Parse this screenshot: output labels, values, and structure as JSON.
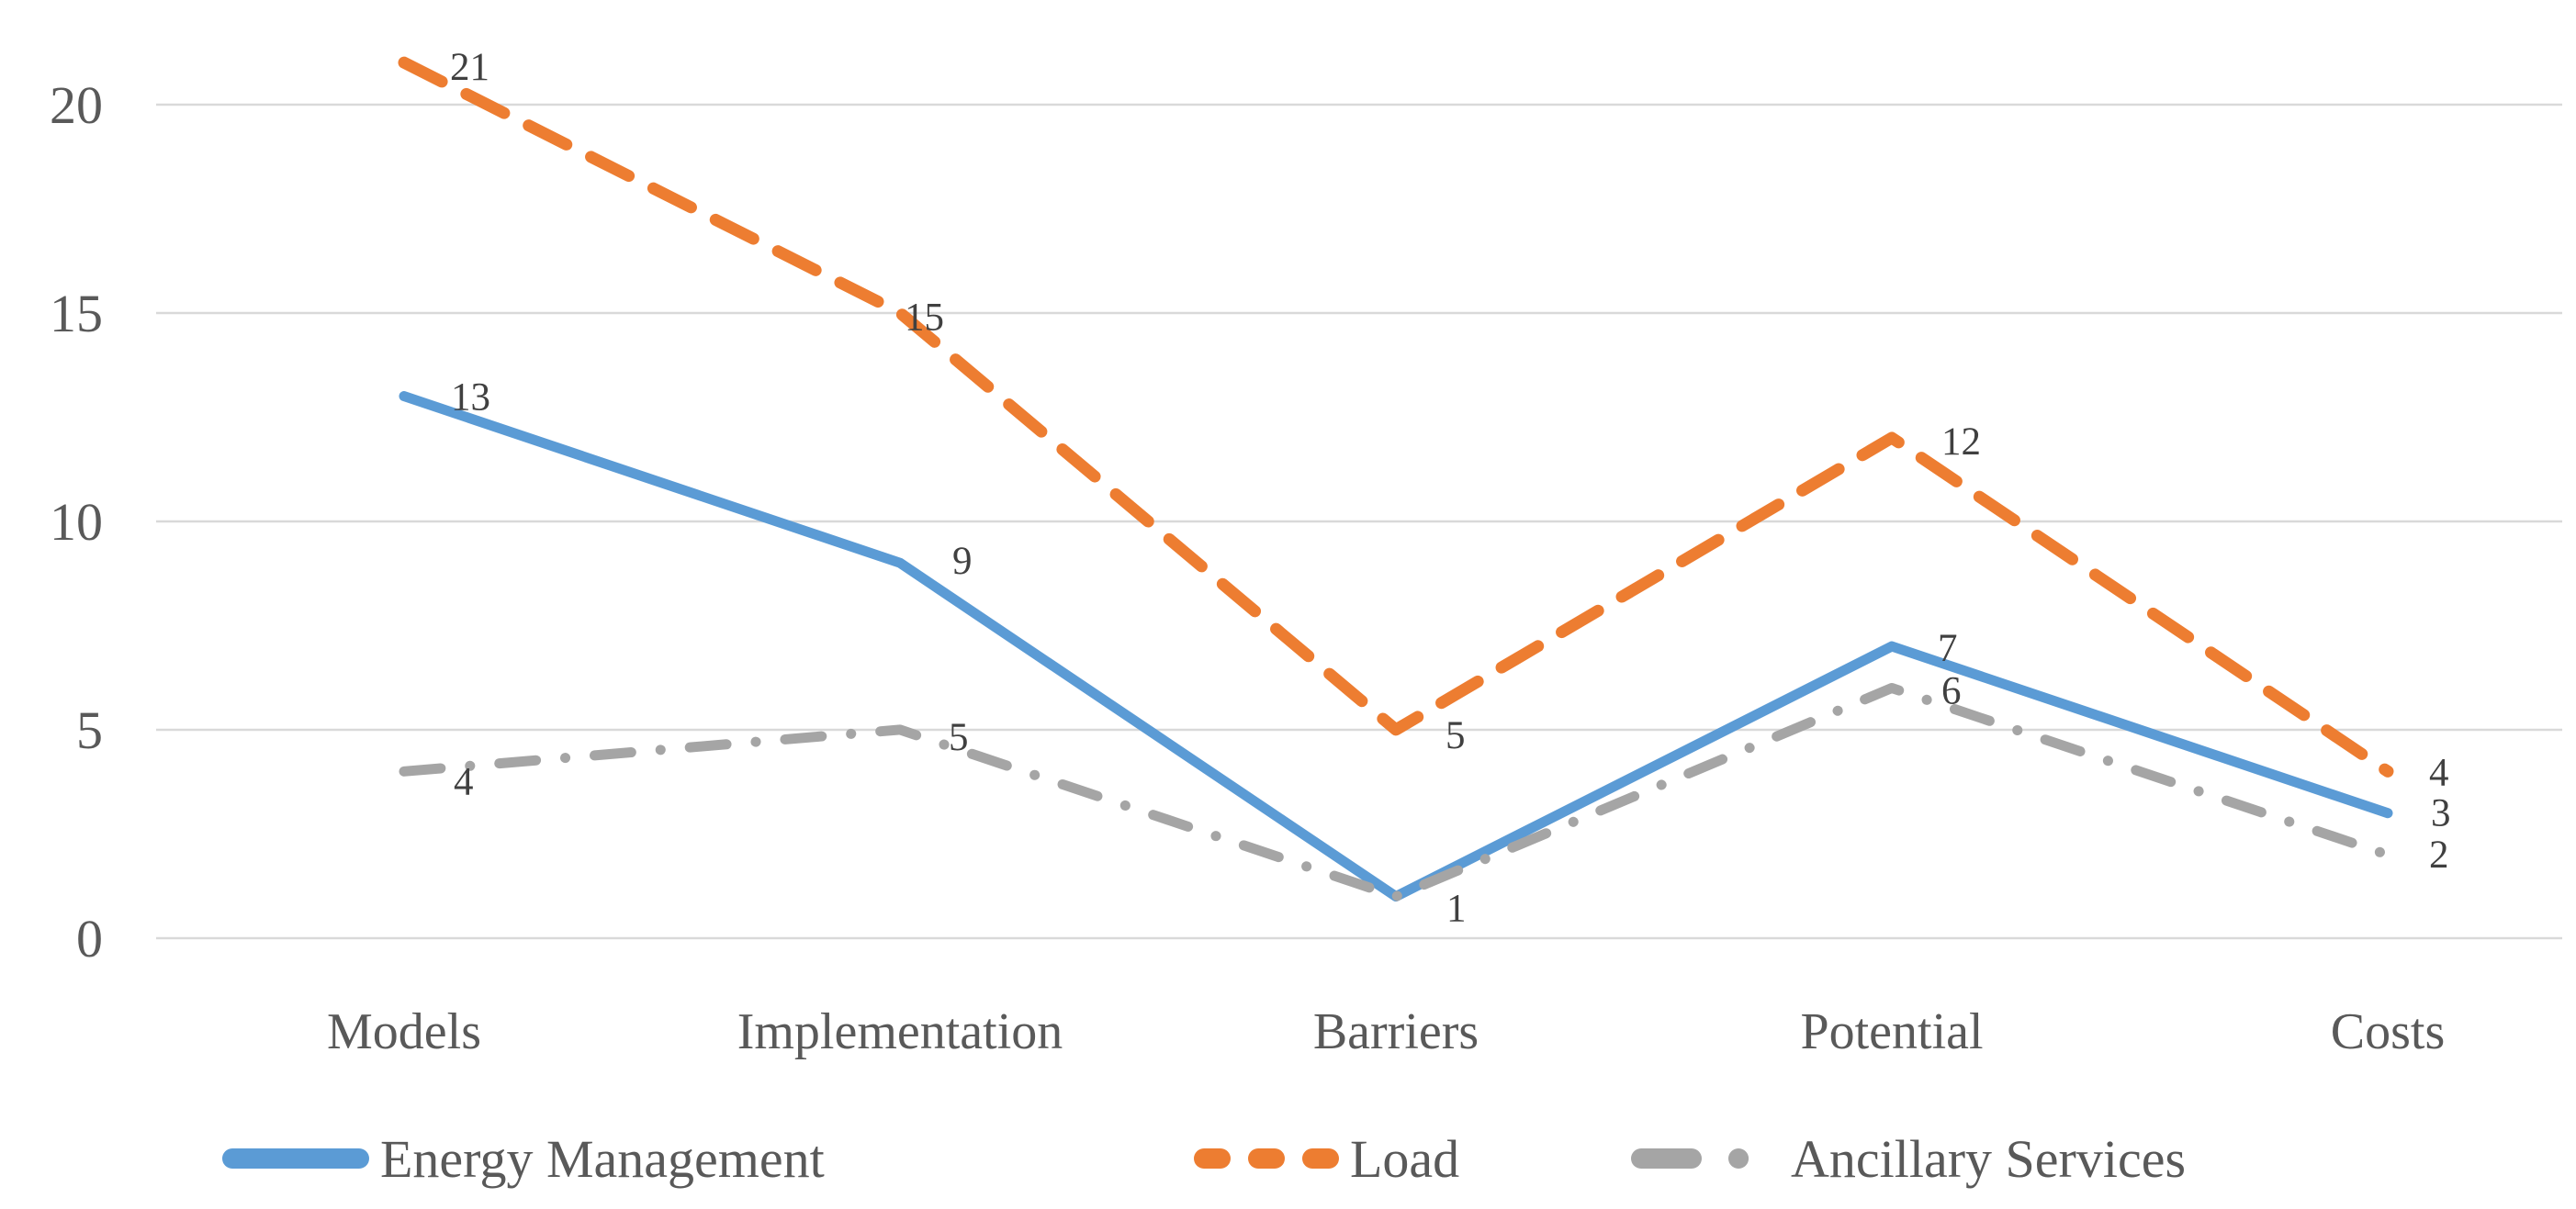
{
  "figure": {
    "background": "#FFFFFF",
    "title": ""
  },
  "chart_data": {
    "type": "line",
    "title": "",
    "xlabel": "",
    "ylabel": "",
    "categories": [
      "Models",
      "Implementation",
      "Barriers",
      "Potential",
      "Costs"
    ],
    "series": [
      {
        "name": "Energy Management",
        "color": "#5B9BD5",
        "style": "solid",
        "values": [
          13,
          9,
          1,
          7,
          3
        ],
        "labels": [
          "13",
          "9",
          "1",
          "7",
          "3"
        ]
      },
      {
        "name": "Load",
        "color": "#ED7D31",
        "style": "dashed",
        "values": [
          21,
          15,
          5,
          12,
          4
        ],
        "labels": [
          "21",
          "15",
          "5",
          "12",
          "4"
        ]
      },
      {
        "name": "Ancillary Services",
        "color": "#A5A5A5",
        "style": "dash-dot",
        "values": [
          4,
          5,
          1,
          6,
          2
        ],
        "labels": [
          "4",
          "5",
          "",
          "6",
          "2"
        ]
      }
    ],
    "yticks_top_to_bottom": [
      20,
      15,
      10,
      5,
      0
    ],
    "ylim": [
      0,
      21
    ],
    "grid": true,
    "legend_position": "bottom",
    "colors": {
      "gridline": "#D9D9D9",
      "axis_text": "#595959",
      "data_label": "#404040",
      "background": "#FFFFFF"
    }
  }
}
